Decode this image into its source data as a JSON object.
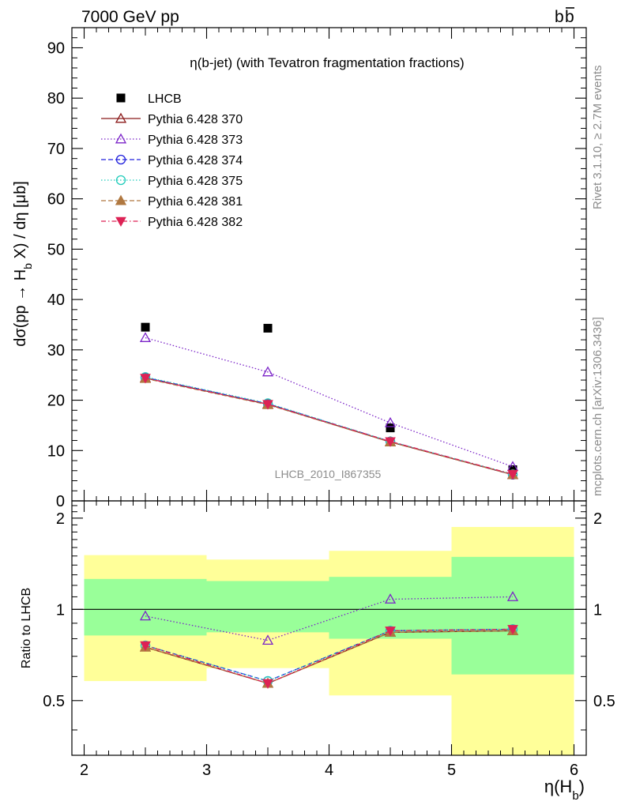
{
  "header": {
    "left": "7000 GeV pp",
    "right": "bb̅",
    "right_base": "b",
    "right_bar": "b"
  },
  "side_labels": {
    "top": "Rivet 3.1.10, ≥ 2.7M events",
    "bottom": "mcplots.cern.ch [arXiv:1306.3436]"
  },
  "chart_data": [
    {
      "type": "scatter",
      "panel": "main",
      "title": "η(b-jet) (with Tevatron fragmentation fractions)",
      "watermark": "LHCB_2010_I867355",
      "ylabel": "dσ(pp → H_b X) / dη [μb]",
      "ylabel_parts": [
        "dσ(pp → H",
        "b",
        " X) / dη [μb]"
      ],
      "xlim": [
        1.9,
        6.1
      ],
      "ylim": [
        0,
        94
      ],
      "yticks": [
        0,
        10,
        20,
        30,
        40,
        50,
        60,
        70,
        80,
        90
      ],
      "yticklabels": [
        "0",
        "10",
        "20",
        "30",
        "40",
        "50",
        "60",
        "70",
        "80",
        "90"
      ],
      "x": [
        2.5,
        3.5,
        4.5,
        5.5
      ],
      "legend_position": "top-left",
      "series": [
        {
          "name": "LHCB",
          "values": [
            34.5,
            34.3,
            14.5,
            6.2
          ],
          "color": "#000000",
          "marker": "square",
          "line": "none"
        },
        {
          "name": "Pythia 6.428 370",
          "values": [
            24.4,
            19.2,
            11.7,
            5.2
          ],
          "color": "#8b1a1a",
          "marker": "triangle-open",
          "line": "solid"
        },
        {
          "name": "Pythia 6.428 373",
          "values": [
            32.4,
            25.6,
            15.5,
            6.8
          ],
          "color": "#7b24c8",
          "marker": "triangle-open",
          "line": "dotted"
        },
        {
          "name": "Pythia 6.428 374",
          "values": [
            24.5,
            19.3,
            11.8,
            5.2
          ],
          "color": "#2222dd",
          "marker": "circle-open",
          "line": "dashed"
        },
        {
          "name": "Pythia 6.428 375",
          "values": [
            24.6,
            19.4,
            11.8,
            5.3
          ],
          "color": "#22ccbb",
          "marker": "circle-open",
          "line": "dotted"
        },
        {
          "name": "Pythia 6.428 381",
          "values": [
            24.3,
            19.1,
            11.7,
            5.2
          ],
          "color": "#b07840",
          "marker": "triangle-filled",
          "line": "dashed"
        },
        {
          "name": "Pythia 6.428 382",
          "values": [
            24.4,
            19.2,
            11.8,
            5.3
          ],
          "color": "#dd2255",
          "marker": "triangle-down-filled",
          "line": "dashdot"
        }
      ]
    },
    {
      "type": "scatter",
      "panel": "ratio",
      "ylabel": "Ratio to LHCB",
      "xlabel": "η(H_b)",
      "xlabel_parts": [
        "η(H",
        "b",
        ")"
      ],
      "xlim": [
        1.9,
        6.1
      ],
      "ylim": [
        0.33,
        2.28
      ],
      "xticks": [
        2,
        3,
        4,
        5,
        6
      ],
      "xticklabels": [
        "2",
        "3",
        "4",
        "5",
        "6"
      ],
      "yticks": [
        0.5,
        1,
        2
      ],
      "yticklabels": [
        "0.5",
        "1",
        "2"
      ],
      "reference_line": 1,
      "bands": [
        {
          "x": [
            2,
            3
          ],
          "green": [
            0.82,
            1.26
          ],
          "yellow": [
            0.58,
            1.51
          ]
        },
        {
          "x": [
            3,
            4
          ],
          "green": [
            0.84,
            1.24
          ],
          "yellow": [
            0.64,
            1.46
          ]
        },
        {
          "x": [
            4,
            5
          ],
          "green": [
            0.8,
            1.28
          ],
          "yellow": [
            0.52,
            1.56
          ]
        },
        {
          "x": [
            5,
            6
          ],
          "green": [
            0.61,
            1.49
          ],
          "yellow": [
            0.33,
            1.87
          ]
        }
      ],
      "band_colors": {
        "green": "#99ff99",
        "yellow": "#ffff99"
      },
      "x": [
        2.5,
        3.5,
        4.5,
        5.5
      ],
      "series": [
        {
          "name": "Pythia 6.428 370",
          "values": [
            0.75,
            0.57,
            0.84,
            0.85
          ]
        },
        {
          "name": "Pythia 6.428 373",
          "values": [
            0.95,
            0.79,
            1.08,
            1.1
          ]
        },
        {
          "name": "Pythia 6.428 374",
          "values": [
            0.76,
            0.58,
            0.85,
            0.86
          ]
        },
        {
          "name": "Pythia 6.428 375",
          "values": [
            0.76,
            0.58,
            0.85,
            0.86
          ]
        },
        {
          "name": "Pythia 6.428 381",
          "values": [
            0.75,
            0.57,
            0.84,
            0.85
          ]
        },
        {
          "name": "Pythia 6.428 382",
          "values": [
            0.76,
            0.57,
            0.85,
            0.86
          ]
        }
      ]
    }
  ]
}
